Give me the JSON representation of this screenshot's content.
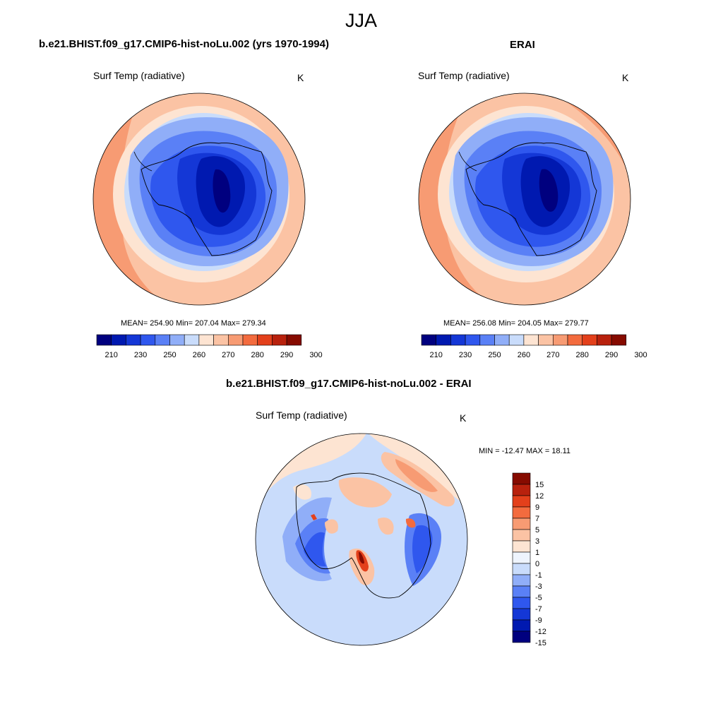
{
  "figure": {
    "title": "JJA"
  },
  "panels": {
    "model": {
      "title": "b.e21.BHIST.f09_g17.CMIP6-hist-noLu.002 (yrs 1970-1994)",
      "variable": "Surf Temp (radiative)",
      "units": "K",
      "stats": "MEAN= 254.90  Min= 207.04  Max= 279.34",
      "mean": 254.9,
      "min": 207.04,
      "max": 279.34
    },
    "obs": {
      "title": "ERAI",
      "variable": "Surf Temp (radiative)",
      "units": "K",
      "stats": "MEAN= 256.08  Min= 204.05  Max= 279.77",
      "mean": 256.08,
      "min": 204.05,
      "max": 279.77
    },
    "diff": {
      "title": "b.e21.BHIST.f09_g17.CMIP6-hist-noLu.002 - ERAI",
      "variable": "Surf Temp (radiative)",
      "units": "K",
      "stats": "MIN = -12.47 MAX =  18.11",
      "min": -12.47,
      "max": 18.11
    }
  },
  "abs_colorbar": {
    "colors": [
      "#00007f",
      "#0019b0",
      "#1437d6",
      "#2f57ee",
      "#5a80f6",
      "#90aef8",
      "#c9dcfb",
      "#fde4d2",
      "#fbc3a4",
      "#f79b73",
      "#f36b3e",
      "#e3401b",
      "#b8210d",
      "#860b00"
    ],
    "tick_labels": [
      "210",
      "230",
      "250",
      "260",
      "270",
      "280",
      "290",
      "300"
    ]
  },
  "diff_colorbar": {
    "colors": [
      "#00007f",
      "#0019b0",
      "#1437d6",
      "#2f57ee",
      "#5a80f6",
      "#90aef8",
      "#c9dcfb",
      "#eef4fd",
      "#fde4d2",
      "#fbc3a4",
      "#f79b73",
      "#f36b3e",
      "#e3401b",
      "#b8210d",
      "#860b00"
    ],
    "tick_labels": [
      "15",
      "12",
      "9",
      "7",
      "5",
      "3",
      "1",
      "0",
      "-1",
      "-3",
      "-5",
      "-7",
      "-9",
      "-12",
      "-15"
    ]
  }
}
